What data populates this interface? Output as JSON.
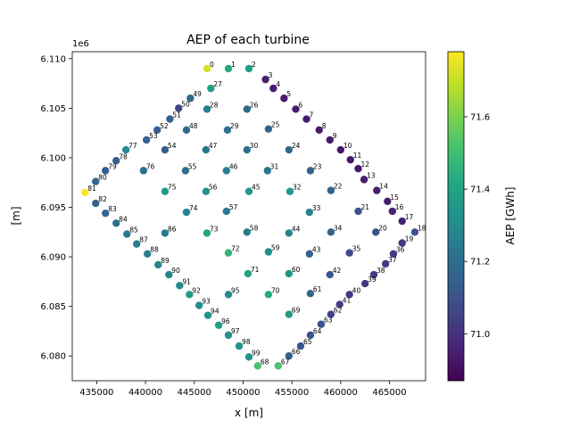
{
  "chart_data": {
    "type": "scatter",
    "title": "AEP of each turbine",
    "xlabel": "x [m]",
    "ylabel": "[m]",
    "y_offset_label": "1e6",
    "colorbar_label": "AEP [GWh]",
    "colormap": "viridis",
    "xlim": [
      432500,
      468700
    ],
    "ylim": [
      6077500,
      6110700
    ],
    "clim": [
      70.87,
      71.78
    ],
    "grid": false,
    "x_ticks": [
      435000,
      440000,
      445000,
      450000,
      455000,
      460000,
      465000
    ],
    "x_tick_labels": [
      "435000",
      "440000",
      "445000",
      "450000",
      "455000",
      "460000",
      "465000"
    ],
    "y_ticks": [
      6080000,
      6085000,
      6090000,
      6095000,
      6100000,
      6105000,
      6110000
    ],
    "y_tick_labels": [
      "6.080",
      "6.085",
      "6.090",
      "6.095",
      "6.100",
      "6.105",
      "6.110"
    ],
    "c_ticks": [
      71.0,
      71.2,
      71.4,
      71.6
    ],
    "c_tick_labels": [
      "71.0",
      "71.2",
      "71.4",
      "71.6"
    ],
    "points": [
      {
        "id": "0",
        "x": 446300,
        "y": 6109000,
        "aep": 71.72
      },
      {
        "id": "1",
        "x": 448500,
        "y": 6109000,
        "aep": 71.42
      },
      {
        "id": "2",
        "x": 450600,
        "y": 6109000,
        "aep": 71.38
      },
      {
        "id": "3",
        "x": 452300,
        "y": 6107900,
        "aep": 70.95
      },
      {
        "id": "4",
        "x": 453100,
        "y": 6107000,
        "aep": 70.94
      },
      {
        "id": "5",
        "x": 454200,
        "y": 6106000,
        "aep": 70.94
      },
      {
        "id": "6",
        "x": 455400,
        "y": 6104900,
        "aep": 70.94
      },
      {
        "id": "7",
        "x": 456500,
        "y": 6103900,
        "aep": 70.94
      },
      {
        "id": "8",
        "x": 457800,
        "y": 6102800,
        "aep": 70.94
      },
      {
        "id": "9",
        "x": 458900,
        "y": 6101800,
        "aep": 70.94
      },
      {
        "id": "10",
        "x": 460000,
        "y": 6100800,
        "aep": 70.93
      },
      {
        "id": "11",
        "x": 461000,
        "y": 6099800,
        "aep": 70.93
      },
      {
        "id": "12",
        "x": 461800,
        "y": 6098900,
        "aep": 70.93
      },
      {
        "id": "13",
        "x": 462400,
        "y": 6097800,
        "aep": 70.94
      },
      {
        "id": "14",
        "x": 463700,
        "y": 6096700,
        "aep": 70.94
      },
      {
        "id": "15",
        "x": 464800,
        "y": 6095600,
        "aep": 70.94
      },
      {
        "id": "16",
        "x": 465300,
        "y": 6094600,
        "aep": 70.95
      },
      {
        "id": "17",
        "x": 466300,
        "y": 6093600,
        "aep": 70.95
      },
      {
        "id": "18",
        "x": 467600,
        "y": 6092500,
        "aep": 71.1
      },
      {
        "id": "19",
        "x": 466300,
        "y": 6091400,
        "aep": 71.02
      },
      {
        "id": "20",
        "x": 463600,
        "y": 6092500,
        "aep": 71.1
      },
      {
        "id": "21",
        "x": 461800,
        "y": 6094600,
        "aep": 71.1
      },
      {
        "id": "22",
        "x": 459000,
        "y": 6096700,
        "aep": 71.15
      },
      {
        "id": "23",
        "x": 456900,
        "y": 6098700,
        "aep": 71.15
      },
      {
        "id": "24",
        "x": 454700,
        "y": 6100800,
        "aep": 71.18
      },
      {
        "id": "25",
        "x": 452600,
        "y": 6102900,
        "aep": 71.17
      },
      {
        "id": "26",
        "x": 450400,
        "y": 6104900,
        "aep": 71.19
      },
      {
        "id": "27",
        "x": 446700,
        "y": 6107000,
        "aep": 71.39
      },
      {
        "id": "28",
        "x": 446300,
        "y": 6104900,
        "aep": 71.25
      },
      {
        "id": "29",
        "x": 448400,
        "y": 6102800,
        "aep": 71.2
      },
      {
        "id": "30",
        "x": 450400,
        "y": 6100800,
        "aep": 71.21
      },
      {
        "id": "31",
        "x": 452500,
        "y": 6098700,
        "aep": 71.22
      },
      {
        "id": "32",
        "x": 454800,
        "y": 6096600,
        "aep": 71.35
      },
      {
        "id": "33",
        "x": 456800,
        "y": 6094500,
        "aep": 71.28
      },
      {
        "id": "34",
        "x": 459000,
        "y": 6092500,
        "aep": 71.15
      },
      {
        "id": "35",
        "x": 460900,
        "y": 6090400,
        "aep": 71.08
      },
      {
        "id": "36",
        "x": 465400,
        "y": 6090300,
        "aep": 71.03
      },
      {
        "id": "37",
        "x": 464600,
        "y": 6089300,
        "aep": 71.02
      },
      {
        "id": "38",
        "x": 463400,
        "y": 6088200,
        "aep": 71.02
      },
      {
        "id": "39",
        "x": 462500,
        "y": 6087300,
        "aep": 71.02
      },
      {
        "id": "40",
        "x": 460900,
        "y": 6086200,
        "aep": 71.02
      },
      {
        "id": "41",
        "x": 459900,
        "y": 6085200,
        "aep": 71.03
      },
      {
        "id": "42",
        "x": 458900,
        "y": 6088200,
        "aep": 71.12
      },
      {
        "id": "43",
        "x": 456800,
        "y": 6090300,
        "aep": 71.15
      },
      {
        "id": "44",
        "x": 454700,
        "y": 6092400,
        "aep": 71.28
      },
      {
        "id": "45",
        "x": 450600,
        "y": 6096600,
        "aep": 71.35
      },
      {
        "id": "46",
        "x": 448300,
        "y": 6098700,
        "aep": 71.25
      },
      {
        "id": "47",
        "x": 446200,
        "y": 6100800,
        "aep": 71.23
      },
      {
        "id": "48",
        "x": 444200,
        "y": 6102800,
        "aep": 71.19
      },
      {
        "id": "49",
        "x": 444600,
        "y": 6106000,
        "aep": 71.18
      },
      {
        "id": "50",
        "x": 443400,
        "y": 6105000,
        "aep": 71.06
      },
      {
        "id": "51",
        "x": 442500,
        "y": 6103900,
        "aep": 71.15
      },
      {
        "id": "52",
        "x": 441200,
        "y": 6102800,
        "aep": 71.15
      },
      {
        "id": "53",
        "x": 440100,
        "y": 6101800,
        "aep": 71.15
      },
      {
        "id": "54",
        "x": 442000,
        "y": 6100800,
        "aep": 71.14
      },
      {
        "id": "55",
        "x": 444100,
        "y": 6098700,
        "aep": 71.21
      },
      {
        "id": "56",
        "x": 446200,
        "y": 6096600,
        "aep": 71.33
      },
      {
        "id": "57",
        "x": 448300,
        "y": 6094600,
        "aep": 71.24
      },
      {
        "id": "58",
        "x": 450400,
        "y": 6092500,
        "aep": 71.25
      },
      {
        "id": "59",
        "x": 452600,
        "y": 6090500,
        "aep": 71.32
      },
      {
        "id": "60",
        "x": 454700,
        "y": 6088300,
        "aep": 71.35
      },
      {
        "id": "61",
        "x": 456900,
        "y": 6086300,
        "aep": 71.18
      },
      {
        "id": "62",
        "x": 459000,
        "y": 6084200,
        "aep": 71.04
      },
      {
        "id": "63",
        "x": 458000,
        "y": 6083200,
        "aep": 71.1
      },
      {
        "id": "64",
        "x": 456900,
        "y": 6082100,
        "aep": 71.1
      },
      {
        "id": "65",
        "x": 455900,
        "y": 6081000,
        "aep": 71.12
      },
      {
        "id": "66",
        "x": 454700,
        "y": 6080000,
        "aep": 71.15
      },
      {
        "id": "67",
        "x": 453600,
        "y": 6079000,
        "aep": 71.52
      },
      {
        "id": "68",
        "x": 451500,
        "y": 6079000,
        "aep": 71.52
      },
      {
        "id": "69",
        "x": 454700,
        "y": 6084200,
        "aep": 71.36
      },
      {
        "id": "70",
        "x": 452600,
        "y": 6086200,
        "aep": 71.42
      },
      {
        "id": "71",
        "x": 450500,
        "y": 6088300,
        "aep": 71.4
      },
      {
        "id": "72",
        "x": 448500,
        "y": 6090400,
        "aep": 71.46
      },
      {
        "id": "73",
        "x": 446300,
        "y": 6092400,
        "aep": 71.4
      },
      {
        "id": "74",
        "x": 444200,
        "y": 6094500,
        "aep": 71.27
      },
      {
        "id": "75",
        "x": 442000,
        "y": 6096600,
        "aep": 71.36
      },
      {
        "id": "76",
        "x": 439800,
        "y": 6098700,
        "aep": 71.2
      },
      {
        "id": "77",
        "x": 438000,
        "y": 6100800,
        "aep": 71.3
      },
      {
        "id": "78",
        "x": 437000,
        "y": 6099700,
        "aep": 71.15
      },
      {
        "id": "79",
        "x": 435900,
        "y": 6098700,
        "aep": 71.15
      },
      {
        "id": "80",
        "x": 434900,
        "y": 6097600,
        "aep": 71.16
      },
      {
        "id": "81",
        "x": 433800,
        "y": 6096500,
        "aep": 71.78
      },
      {
        "id": "82",
        "x": 434900,
        "y": 6095400,
        "aep": 71.15
      },
      {
        "id": "83",
        "x": 435900,
        "y": 6094400,
        "aep": 71.16
      },
      {
        "id": "84",
        "x": 437000,
        "y": 6093400,
        "aep": 71.22
      },
      {
        "id": "85",
        "x": 438100,
        "y": 6092300,
        "aep": 71.24
      },
      {
        "id": "86",
        "x": 442000,
        "y": 6092400,
        "aep": 71.25
      },
      {
        "id": "87",
        "x": 439100,
        "y": 6091300,
        "aep": 71.25
      },
      {
        "id": "88",
        "x": 440200,
        "y": 6090300,
        "aep": 71.25
      },
      {
        "id": "89",
        "x": 441300,
        "y": 6089200,
        "aep": 71.28
      },
      {
        "id": "90",
        "x": 442400,
        "y": 6088200,
        "aep": 71.28
      },
      {
        "id": "91",
        "x": 443500,
        "y": 6087100,
        "aep": 71.3
      },
      {
        "id": "92",
        "x": 444500,
        "y": 6086200,
        "aep": 71.36
      },
      {
        "id": "93",
        "x": 445500,
        "y": 6085100,
        "aep": 71.32
      },
      {
        "id": "94",
        "x": 446400,
        "y": 6084100,
        "aep": 71.35
      },
      {
        "id": "95",
        "x": 448500,
        "y": 6086200,
        "aep": 71.3
      },
      {
        "id": "96",
        "x": 447500,
        "y": 6083100,
        "aep": 71.39
      },
      {
        "id": "97",
        "x": 448500,
        "y": 6082100,
        "aep": 71.33
      },
      {
        "id": "98",
        "x": 449600,
        "y": 6081000,
        "aep": 71.34
      },
      {
        "id": "99",
        "x": 450600,
        "y": 6079900,
        "aep": 71.34
      }
    ]
  }
}
